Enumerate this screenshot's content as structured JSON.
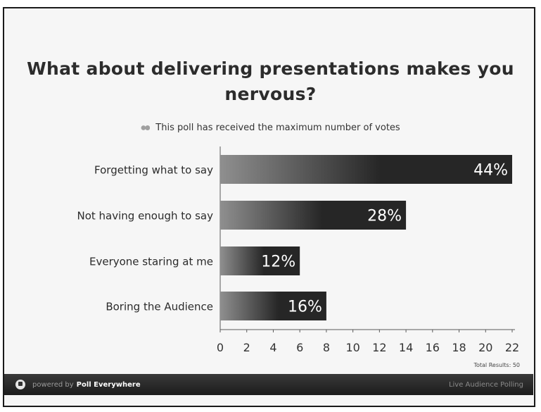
{
  "chart_data": {
    "type": "bar",
    "orientation": "horizontal",
    "title": "What about delivering presentations makes you nervous?",
    "title_lines": [
      "What about delivering presentations makes you",
      "nervous?"
    ],
    "subtitle": "This poll has received the maximum number of votes",
    "categories": [
      "Forgetting what to say",
      "Not having enough to say",
      "Everyone staring at me",
      "Boring the Audience"
    ],
    "values": [
      22,
      14,
      6,
      8
    ],
    "value_labels": [
      "44%",
      "28%",
      "12%",
      "16%"
    ],
    "xlim": [
      0,
      22
    ],
    "xticks": [
      0,
      2,
      4,
      6,
      8,
      10,
      12,
      14,
      16,
      18,
      20,
      22
    ],
    "grid": false,
    "total_results_text": "Total Results: 50"
  },
  "footer": {
    "powered_by": "powered by",
    "brand": "Poll Everywhere",
    "right_text": "Live Audience Polling"
  },
  "colors": {
    "bar_dark": "#262626",
    "bar_light": "#8f8f8f",
    "axis": "#5a5a5a"
  }
}
